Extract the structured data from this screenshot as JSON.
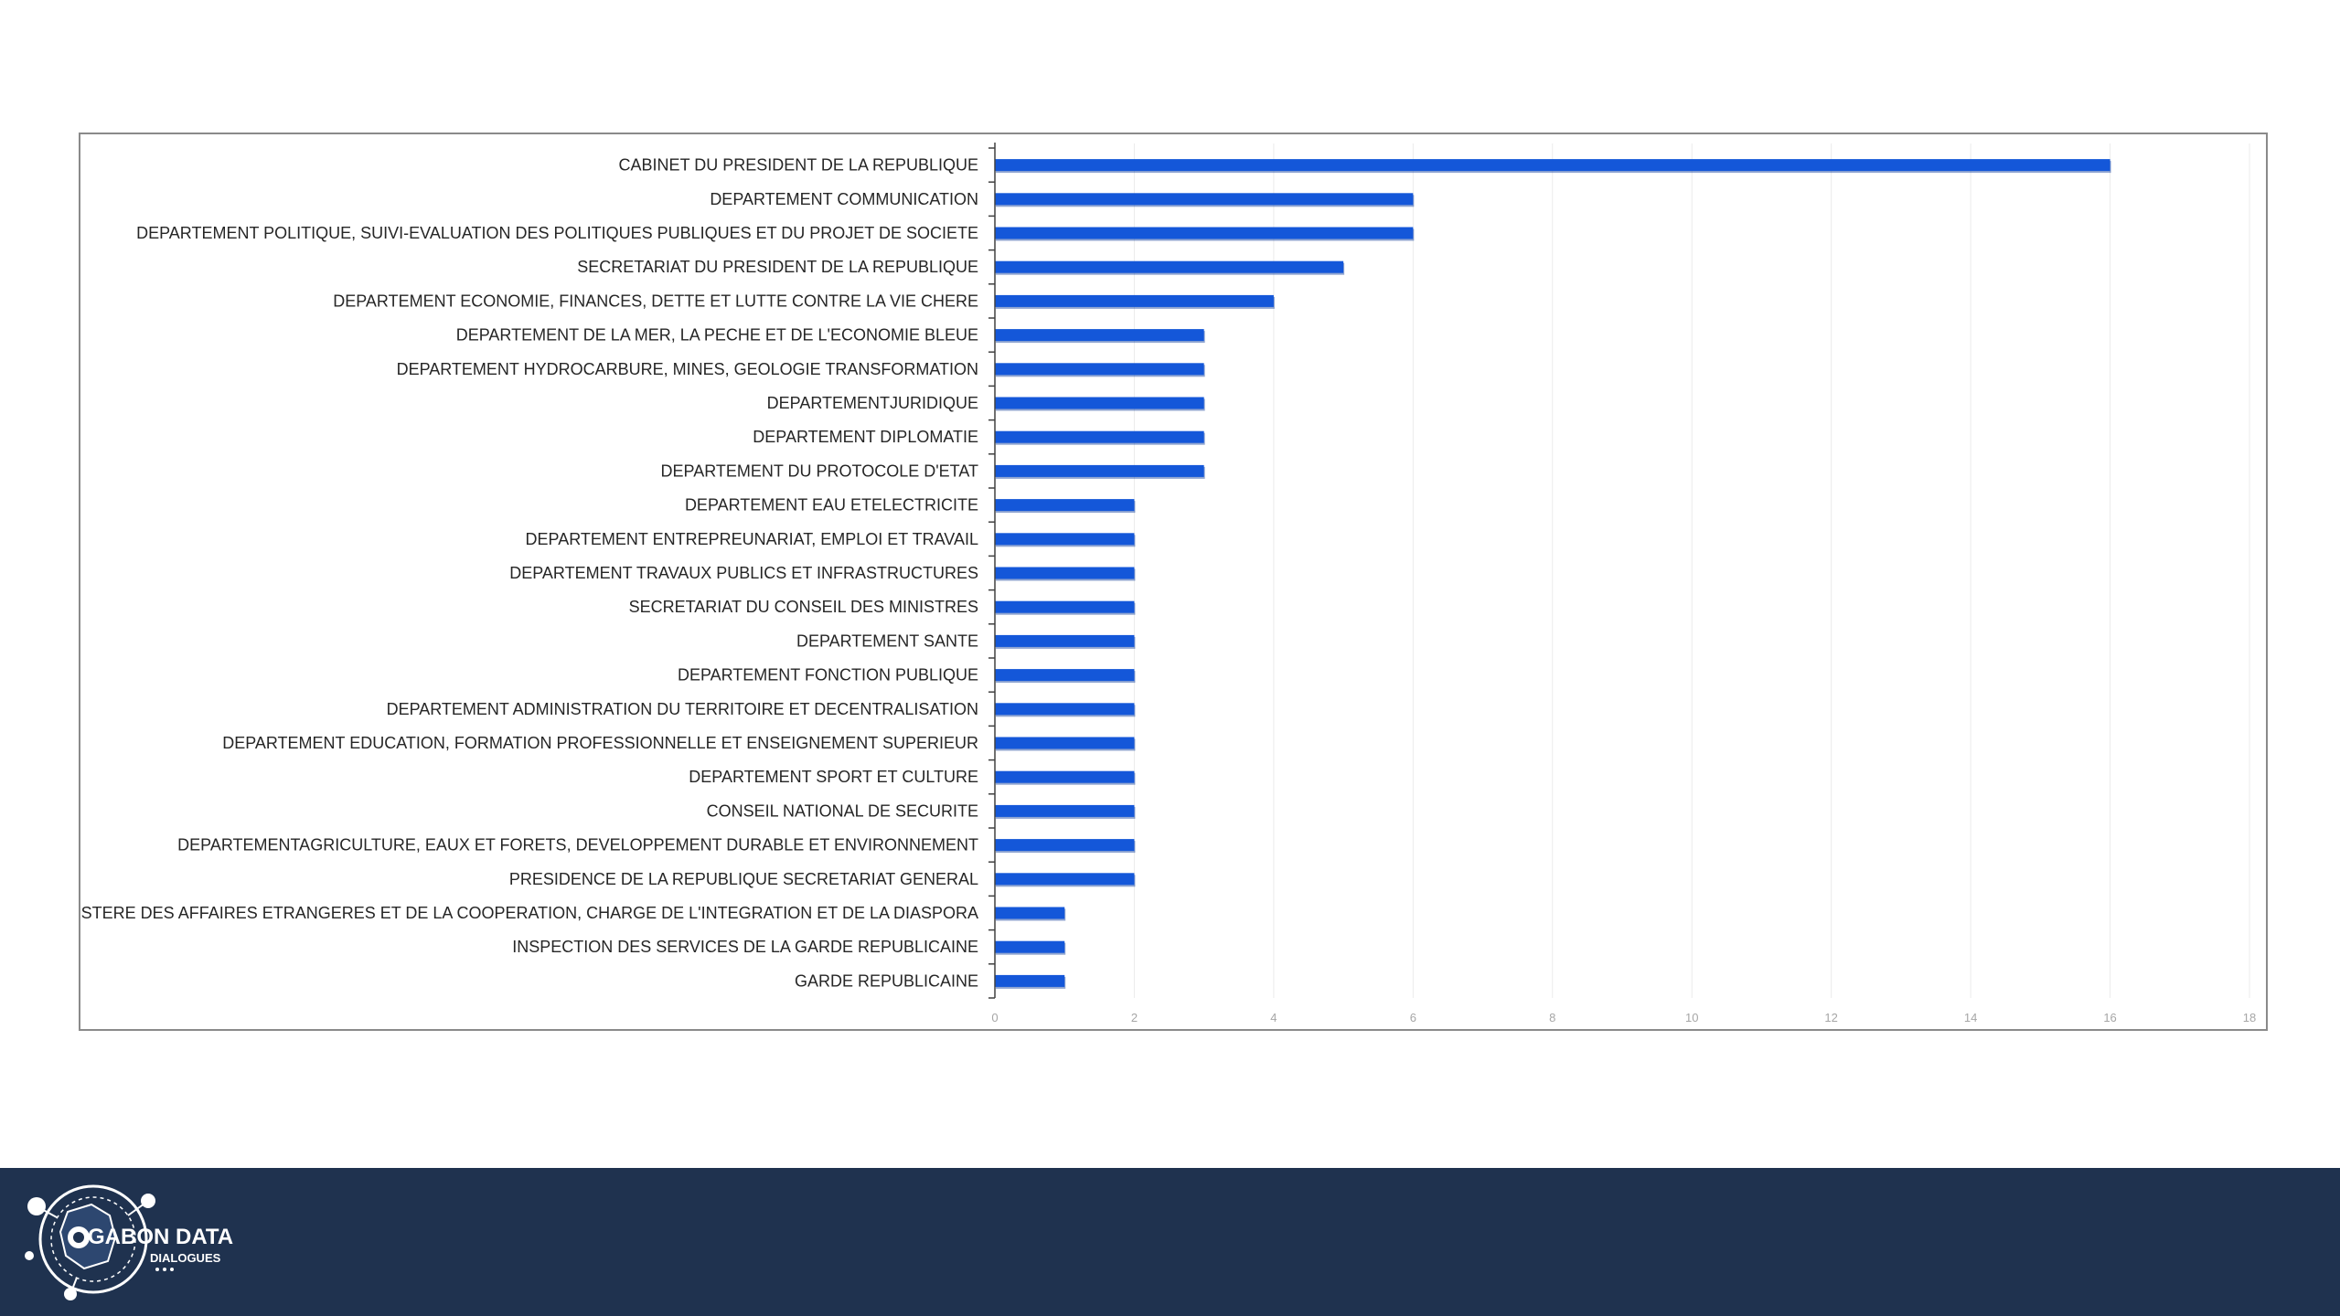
{
  "chart_data": {
    "type": "bar",
    "orientation": "horizontal",
    "categories": [
      "CABINET DU PRESIDENT DE LA REPUBLIQUE",
      "DEPARTEMENT COMMUNICATION",
      "DEPARTEMENT POLITIQUE, SUIVI-EVALUATION DES POLITIQUES PUBLIQUES ET DU PROJET DE SOCIETE",
      "SECRETARIAT DU PRESIDENT DE LA REPUBLIQUE",
      "DEPARTEMENT ECONOMIE, FINANCES, DETTE ET LUTTE CONTRE LA VIE CHERE",
      "DEPARTEMENT DE LA MER, LA PECHE ET DE L'ECONOMIE BLEUE",
      "DEPARTEMENT HYDROCARBURE, MINES, GEOLOGIE TRANSFORMATION",
      "DEPARTEMENTJURIDIQUE",
      "DEPARTEMENT DIPLOMATIE",
      "DEPARTEMENT DU PROTOCOLE D'ETAT",
      "DEPARTEMENT EAU ETELECTRICITE",
      "DEPARTEMENT ENTREPREUNARIAT, EMPLOI ET TRAVAIL",
      "DEPARTEMENT TRAVAUX PUBLICS ET INFRASTRUCTURES",
      "SECRETARIAT DU CONSEIL DES MINISTRES",
      "DEPARTEMENT SANTE",
      "DEPARTEMENT FONCTION PUBLIQUE",
      "DEPARTEMENT ADMINISTRATION DU TERRITOIRE ET DECENTRALISATION",
      "DEPARTEMENT EDUCATION, FORMATION PROFESSIONNELLE ET ENSEIGNEMENT SUPERIEUR",
      "DEPARTEMENT SPORT ET CULTURE",
      "CONSEIL NATIONAL DE SECURITE",
      "DEPARTEMENTAGRICULTURE, EAUX ET FORETS, DEVELOPPEMENT DURABLE ET ENVIRONNEMENT",
      "PRESIDENCE DE LA REPUBLIQUE SECRETARIAT GENERAL",
      "MINISTERE DES AFFAIRES ETRANGERES ET DE LA COOPERATION, CHARGE DE L'INTEGRATION ET DE LA DIASPORA",
      "INSPECTION DES SERVICES DE LA GARDE REPUBLICAINE",
      "GARDE REPUBLICAINE"
    ],
    "values": [
      16,
      6,
      6,
      5,
      4,
      3,
      3,
      3,
      3,
      3,
      2,
      2,
      2,
      2,
      2,
      2,
      2,
      2,
      2,
      2,
      2,
      2,
      1,
      1,
      1
    ],
    "xlim": [
      0,
      18
    ],
    "xticks": [
      "0",
      "2",
      "4",
      "6",
      "8",
      "10",
      "12",
      "14",
      "16",
      "18"
    ],
    "grid": true,
    "bar_color": "#1457d9",
    "title": "",
    "xlabel": "",
    "ylabel": ""
  },
  "footer": {
    "background": "#1f324f",
    "logo_line1": "GABON DATA",
    "logo_line2": "DIALOGUES"
  }
}
